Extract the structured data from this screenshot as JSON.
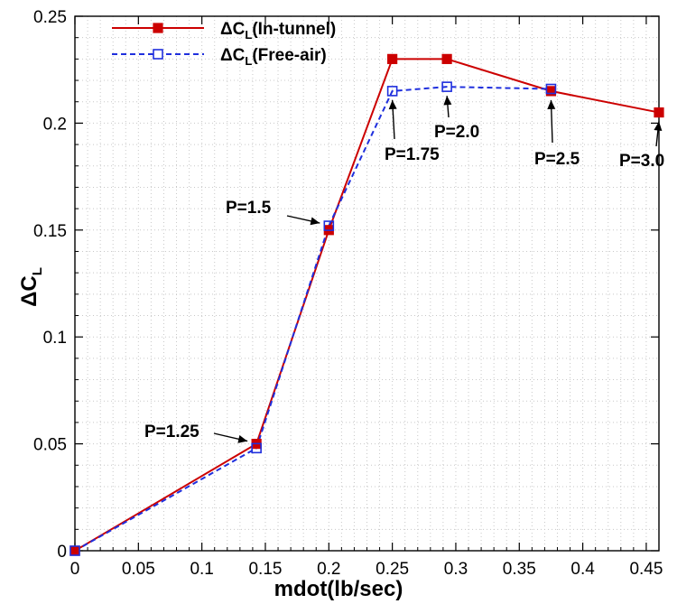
{
  "chart_data": {
    "type": "line",
    "title": "",
    "xlabel": "mdot(lb/sec)",
    "ylabel": {
      "delta": "Δ",
      "main": "C",
      "sub": "L"
    },
    "xlim": [
      0,
      0.46
    ],
    "ylim": [
      0,
      0.25
    ],
    "x_ticks": [
      0,
      0.05,
      0.1,
      0.15,
      0.2,
      0.25,
      0.3,
      0.35,
      0.4,
      0.45
    ],
    "x_tick_labels": [
      "0",
      "0.05",
      "0.1",
      "0.15",
      "0.2",
      "0.25",
      "0.3",
      "0.35",
      "0.4",
      "0.45"
    ],
    "y_ticks": [
      0,
      0.05,
      0.1,
      0.15,
      0.2,
      0.25
    ],
    "y_tick_labels": [
      "0",
      "0.05",
      "0.1",
      "0.15",
      "0.2",
      "0.25"
    ],
    "grid": true,
    "legend_position": "top-left",
    "series": [
      {
        "name": {
          "delta": "Δ",
          "main": "C",
          "sub": "L",
          "suffix": "(In-tunnel)"
        },
        "color": "#cc0000",
        "line": "solid",
        "marker": "filled-square",
        "x": [
          0,
          0.143,
          0.2,
          0.25,
          0.293,
          0.375,
          0.46
        ],
        "y": [
          0,
          0.05,
          0.15,
          0.23,
          0.23,
          0.215,
          0.205
        ]
      },
      {
        "name": {
          "delta": "Δ",
          "main": "C",
          "sub": "L",
          "suffix": "(Free-air)"
        },
        "color": "#1f2fdd",
        "line": "dashed",
        "marker": "open-square",
        "x": [
          0,
          0.143,
          0.2,
          0.25,
          0.293,
          0.375
        ],
        "y": [
          0,
          0.048,
          0.152,
          0.215,
          0.217,
          0.216
        ]
      }
    ],
    "annotations": [
      {
        "text": "P=1.25",
        "x": 0.143,
        "y": 0.05
      },
      {
        "text": "P=1.5",
        "x": 0.2,
        "y": 0.152
      },
      {
        "text": "P=1.75",
        "x": 0.25,
        "y": 0.215
      },
      {
        "text": "P=2.0",
        "x": 0.293,
        "y": 0.217
      },
      {
        "text": "P=2.5",
        "x": 0.375,
        "y": 0.215
      },
      {
        "text": "P=3.0",
        "x": 0.46,
        "y": 0.205
      }
    ]
  }
}
